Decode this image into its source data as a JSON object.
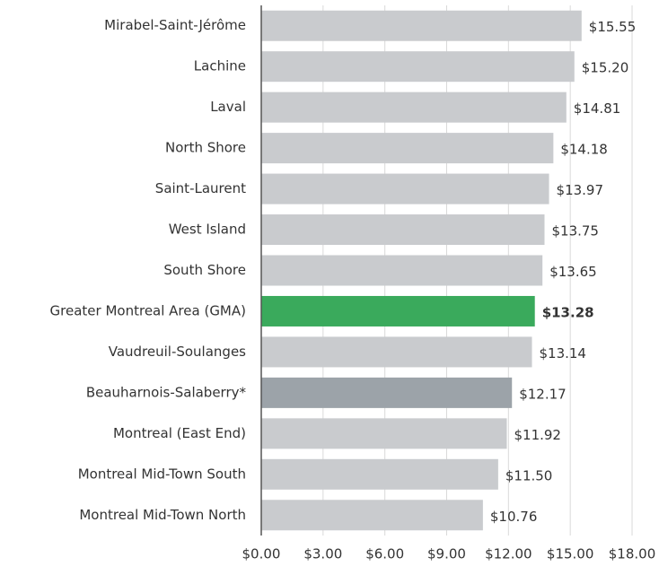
{
  "chart_data": {
    "type": "barh",
    "categories": [
      "Mirabel-Saint-Jérôme",
      "Lachine",
      "Laval",
      "North Shore",
      "Saint-Laurent",
      "West Island",
      "South Shore",
      "Greater Montreal Area (GMA)",
      "Vaudreuil-Soulanges",
      "Beauharnois-Salaberry*",
      "Montreal (East End)",
      "Montreal Mid-Town South",
      "Montreal Mid-Town North"
    ],
    "values": [
      15.55,
      15.2,
      14.81,
      14.18,
      13.97,
      13.75,
      13.65,
      13.28,
      13.14,
      12.17,
      11.92,
      11.5,
      10.76
    ],
    "value_labels": [
      "$15.55",
      "$15.20",
      "$14.81",
      "$14.18",
      "$13.97",
      "$13.75",
      "$13.65",
      "$13.28",
      "$13.14",
      "$12.17",
      "$11.92",
      "$11.50",
      "$10.76"
    ],
    "colors": [
      "#c9cbce",
      "#c9cbce",
      "#c9cbce",
      "#c9cbce",
      "#c9cbce",
      "#c9cbce",
      "#c9cbce",
      "#3aaa5c",
      "#c9cbce",
      "#9ca3a9",
      "#c9cbce",
      "#c9cbce",
      "#c9cbce"
    ],
    "highlight": 7,
    "xlim": [
      0,
      18
    ],
    "xticks": [
      {
        "value": 0,
        "label": "$0.00"
      },
      {
        "value": 3,
        "label": "$3.00"
      },
      {
        "value": 6,
        "label": "$6.00"
      },
      {
        "value": 9,
        "label": "$9.00"
      },
      {
        "value": 12,
        "label": "$12.00"
      },
      {
        "value": 15,
        "label": "$15.00"
      },
      {
        "value": 18,
        "label": "$18.00"
      }
    ],
    "grid": true
  }
}
